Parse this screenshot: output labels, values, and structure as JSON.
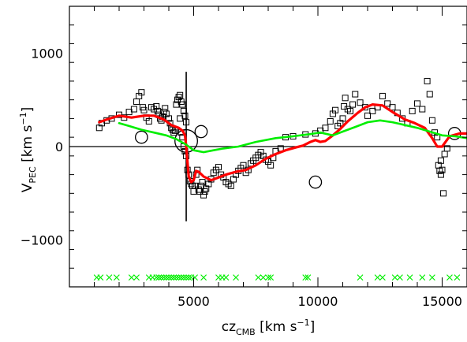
{
  "chart_data": {
    "type": "scatter",
    "xlabel": {
      "main": "cz",
      "sub": "CMB",
      "unit_pre": " [km s",
      "unit_sup": "−1",
      "unit_post": "]"
    },
    "ylabel": {
      "main": "V",
      "sub": "PEC",
      "unit_pre": " [km s",
      "unit_sup": "−1",
      "unit_post": "]"
    },
    "xlim": [
      0,
      16000
    ],
    "ylim": [
      -1500,
      1500
    ],
    "xticks": [
      {
        "value": 5000,
        "label": "5000"
      },
      {
        "value": 10000,
        "label": "10000"
      },
      {
        "value": 15000,
        "label": "15000"
      }
    ],
    "yticks": [
      {
        "value": 1000,
        "label": "1000"
      },
      {
        "value": 0,
        "label": "0"
      },
      {
        "value": -1000,
        "label": "−1000"
      }
    ],
    "grid": false,
    "colors": {
      "squares": "#000000",
      "circles": "#000000",
      "red_curve": "#ff0000",
      "green_curve": "#00ee00",
      "green_marks": "#00ee00",
      "frame": "#000000"
    },
    "zero_line": 0,
    "vertical_marker": {
      "x": 4700,
      "y_range": [
        -800,
        800
      ]
    },
    "series": [
      {
        "kind": "squares",
        "points": [
          [
            1200,
            200
          ],
          [
            1300,
            250
          ],
          [
            1500,
            280
          ],
          [
            1700,
            300
          ],
          [
            2000,
            340
          ],
          [
            2200,
            310
          ],
          [
            2400,
            370
          ],
          [
            2600,
            400
          ],
          [
            2700,
            480
          ],
          [
            2800,
            540
          ],
          [
            2900,
            580
          ],
          [
            2950,
            420
          ],
          [
            3000,
            390
          ],
          [
            3100,
            310
          ],
          [
            3200,
            270
          ],
          [
            3300,
            420
          ],
          [
            3400,
            400
          ],
          [
            3500,
            430
          ],
          [
            3550,
            380
          ],
          [
            3600,
            340
          ],
          [
            3650,
            300
          ],
          [
            3700,
            280
          ],
          [
            3750,
            320
          ],
          [
            3800,
            370
          ],
          [
            3850,
            410
          ],
          [
            3900,
            350
          ],
          [
            4000,
            300
          ],
          [
            4050,
            250
          ],
          [
            4100,
            200
          ],
          [
            4150,
            180
          ],
          [
            4200,
            150
          ],
          [
            4250,
            170
          ],
          [
            4300,
            450
          ],
          [
            4350,
            500
          ],
          [
            4400,
            530
          ],
          [
            4450,
            550
          ],
          [
            4500,
            480
          ],
          [
            4550,
            450
          ],
          [
            4600,
            380
          ],
          [
            4650,
            330
          ],
          [
            4700,
            260
          ],
          [
            4450,
            300
          ],
          [
            4500,
            150
          ],
          [
            4550,
            100
          ],
          [
            4600,
            0
          ],
          [
            4650,
            -50
          ],
          [
            4700,
            -100
          ],
          [
            4750,
            -250
          ],
          [
            4800,
            -300
          ],
          [
            4850,
            -370
          ],
          [
            4900,
            -400
          ],
          [
            4950,
            -420
          ],
          [
            5000,
            -480
          ],
          [
            5050,
            -420
          ],
          [
            5100,
            -300
          ],
          [
            5150,
            -250
          ],
          [
            5200,
            -460
          ],
          [
            5250,
            -480
          ],
          [
            5300,
            -420
          ],
          [
            5350,
            -380
          ],
          [
            5400,
            -520
          ],
          [
            5450,
            -480
          ],
          [
            5500,
            -450
          ],
          [
            5600,
            -400
          ],
          [
            5700,
            -350
          ],
          [
            5800,
            -280
          ],
          [
            5900,
            -250
          ],
          [
            6000,
            -220
          ],
          [
            6100,
            -300
          ],
          [
            6200,
            -330
          ],
          [
            6300,
            -380
          ],
          [
            6400,
            -400
          ],
          [
            6500,
            -420
          ],
          [
            6600,
            -350
          ],
          [
            6700,
            -300
          ],
          [
            6800,
            -260
          ],
          [
            6900,
            -230
          ],
          [
            7000,
            -200
          ],
          [
            7100,
            -280
          ],
          [
            7200,
            -250
          ],
          [
            7300,
            -180
          ],
          [
            7400,
            -150
          ],
          [
            7500,
            -120
          ],
          [
            7600,
            -90
          ],
          [
            7700,
            -60
          ],
          [
            7800,
            -100
          ],
          [
            7900,
            -140
          ],
          [
            8000,
            -160
          ],
          [
            8100,
            -200
          ],
          [
            8200,
            -120
          ],
          [
            8300,
            -50
          ],
          [
            8500,
            -20
          ],
          [
            8700,
            100
          ],
          [
            9000,
            110
          ],
          [
            9500,
            130
          ],
          [
            9900,
            140
          ],
          [
            10100,
            170
          ],
          [
            10300,
            200
          ],
          [
            10500,
            270
          ],
          [
            10600,
            350
          ],
          [
            10700,
            390
          ],
          [
            10800,
            220
          ],
          [
            10900,
            250
          ],
          [
            11000,
            300
          ],
          [
            11050,
            430
          ],
          [
            11100,
            520
          ],
          [
            11200,
            400
          ],
          [
            11300,
            380
          ],
          [
            11400,
            450
          ],
          [
            11500,
            560
          ],
          [
            11700,
            470
          ],
          [
            11900,
            420
          ],
          [
            12000,
            330
          ],
          [
            12200,
            380
          ],
          [
            12400,
            420
          ],
          [
            12600,
            540
          ],
          [
            12800,
            460
          ],
          [
            13000,
            420
          ],
          [
            13200,
            360
          ],
          [
            13400,
            300
          ],
          [
            13600,
            250
          ],
          [
            13800,
            380
          ],
          [
            14000,
            460
          ],
          [
            14200,
            400
          ],
          [
            14400,
            700
          ],
          [
            14500,
            560
          ],
          [
            14600,
            280
          ],
          [
            14700,
            150
          ],
          [
            14800,
            100
          ],
          [
            14850,
            -200
          ],
          [
            14900,
            -260
          ],
          [
            14950,
            -300
          ],
          [
            15000,
            -250
          ],
          [
            15050,
            -500
          ],
          [
            14950,
            -150
          ],
          [
            15100,
            -80
          ],
          [
            15200,
            -20
          ]
        ]
      },
      {
        "kind": "circles",
        "points": [
          [
            2900,
            100,
            7
          ],
          [
            4700,
            60,
            13
          ],
          [
            5300,
            160,
            7
          ],
          [
            9900,
            -380,
            7
          ],
          [
            15500,
            140,
            7
          ]
        ]
      },
      {
        "kind": "red_curve",
        "points": [
          [
            1200,
            260
          ],
          [
            1500,
            290
          ],
          [
            2000,
            330
          ],
          [
            2500,
            310
          ],
          [
            3000,
            330
          ],
          [
            3400,
            330
          ],
          [
            3800,
            290
          ],
          [
            4100,
            230
          ],
          [
            4400,
            200
          ],
          [
            4550,
            170
          ],
          [
            4650,
            120
          ],
          [
            4700,
            0
          ],
          [
            4750,
            -160
          ],
          [
            4800,
            -320
          ],
          [
            4900,
            -380
          ],
          [
            5000,
            -360
          ],
          [
            5100,
            -260
          ],
          [
            5200,
            -270
          ],
          [
            5400,
            -320
          ],
          [
            5700,
            -360
          ],
          [
            6000,
            -330
          ],
          [
            6300,
            -300
          ],
          [
            6700,
            -270
          ],
          [
            7100,
            -250
          ],
          [
            7500,
            -200
          ],
          [
            7900,
            -130
          ],
          [
            8300,
            -80
          ],
          [
            8700,
            -40
          ],
          [
            9100,
            -10
          ],
          [
            9400,
            10
          ],
          [
            9700,
            50
          ],
          [
            9900,
            70
          ],
          [
            10100,
            50
          ],
          [
            10300,
            60
          ],
          [
            10600,
            120
          ],
          [
            10900,
            190
          ],
          [
            11200,
            270
          ],
          [
            11600,
            360
          ],
          [
            11900,
            420
          ],
          [
            12200,
            450
          ],
          [
            12600,
            440
          ],
          [
            13000,
            370
          ],
          [
            13500,
            290
          ],
          [
            13900,
            250
          ],
          [
            14300,
            200
          ],
          [
            14600,
            90
          ],
          [
            14800,
            0
          ],
          [
            15000,
            0
          ],
          [
            15300,
            110
          ],
          [
            15700,
            140
          ],
          [
            16000,
            140
          ]
        ]
      },
      {
        "kind": "green_curve",
        "points": [
          [
            2000,
            250
          ],
          [
            2400,
            220
          ],
          [
            2900,
            180
          ],
          [
            3400,
            150
          ],
          [
            3900,
            120
          ],
          [
            4300,
            80
          ],
          [
            4700,
            20
          ],
          [
            5000,
            -40
          ],
          [
            5400,
            -60
          ],
          [
            5800,
            -40
          ],
          [
            6200,
            -20
          ],
          [
            6800,
            0
          ],
          [
            7500,
            50
          ],
          [
            8300,
            90
          ],
          [
            9000,
            110
          ],
          [
            9600,
            130
          ],
          [
            10100,
            150
          ],
          [
            10600,
            120
          ],
          [
            11000,
            160
          ],
          [
            11500,
            210
          ],
          [
            12000,
            260
          ],
          [
            12500,
            280
          ],
          [
            13000,
            260
          ],
          [
            13500,
            230
          ],
          [
            14000,
            200
          ],
          [
            14500,
            160
          ],
          [
            15000,
            120
          ],
          [
            15500,
            110
          ],
          [
            16000,
            90
          ]
        ]
      },
      {
        "kind": "green_marks",
        "y": -1400,
        "x": [
          1100,
          1250,
          1600,
          1900,
          2500,
          2700,
          3200,
          3350,
          3500,
          3600,
          3700,
          3800,
          3900,
          4000,
          4100,
          4200,
          4300,
          4400,
          4500,
          4600,
          4700,
          4800,
          4900,
          5050,
          5400,
          6000,
          6150,
          6300,
          6700,
          7600,
          7800,
          8000,
          8100,
          9500,
          9600,
          11700,
          12400,
          12600,
          13100,
          13300,
          13700,
          14200,
          14600,
          15300,
          15600
        ]
      }
    ]
  }
}
